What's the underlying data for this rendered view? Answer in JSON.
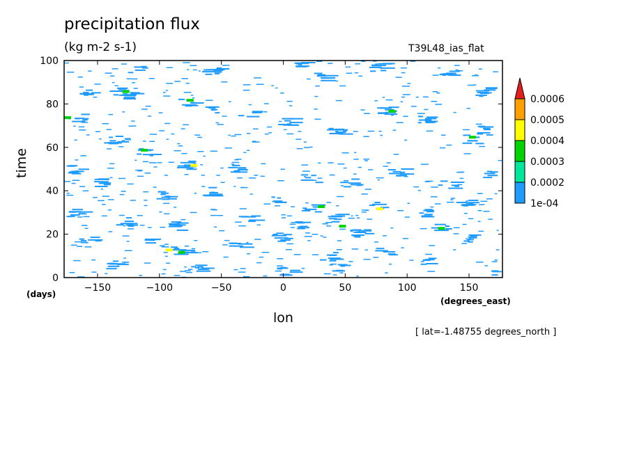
{
  "header": {
    "title": "precipitation flux",
    "units": "(kg m-2 s-1)",
    "run_label": "T39L48_ias_flat"
  },
  "footer": {
    "time_units": "(days)",
    "lon_units": "(degrees_east)",
    "slice_note": "[ lat=-1.48755 degrees_north ]"
  },
  "chart_data": {
    "type": "heatmap",
    "title": "precipitation flux",
    "subtitle": "(kg m-2 s-1)",
    "xlabel": "lon",
    "ylabel": "time",
    "xlim": [
      -177,
      177
    ],
    "ylim": [
      0,
      100
    ],
    "x_ticks": [
      -150,
      -100,
      -50,
      0,
      50,
      100,
      150
    ],
    "y_ticks": [
      0,
      20,
      40,
      60,
      80,
      100
    ],
    "x_tick_labels": [
      "-150",
      "-100",
      "-50",
      "0",
      "50",
      "100",
      "150"
    ],
    "y_tick_labels": [
      "0",
      "20",
      "40",
      "60",
      "80",
      "100"
    ],
    "colorbar": {
      "levels": [
        0.0001,
        0.0002,
        0.0003,
        0.0004,
        0.0005,
        0.0006
      ],
      "labels": [
        "1e-04",
        "0.0002",
        "0.0003",
        "0.0004",
        "0.0005",
        "0.0006"
      ],
      "colors": [
        "#1e9bff",
        "#00e69b",
        "#00d400",
        "#ffff00",
        "#ff9f00",
        "#e61e1e"
      ],
      "extend": "max"
    },
    "streaks": [
      {
        "x": -160,
        "y": 85,
        "len": 12
      },
      {
        "x": -135,
        "y": 86,
        "len": 14
      },
      {
        "x": -128,
        "y": 84,
        "len": 10
      },
      {
        "x": -80,
        "y": 81,
        "len": 12
      },
      {
        "x": -60,
        "y": 78,
        "len": 10
      },
      {
        "x": -30,
        "y": 76,
        "len": 14
      },
      {
        "x": 0,
        "y": 72,
        "len": 12
      },
      {
        "x": 40,
        "y": 68,
        "len": 10
      },
      {
        "x": 80,
        "y": 77,
        "len": 12
      },
      {
        "x": 110,
        "y": 73,
        "len": 14
      },
      {
        "x": 150,
        "y": 64,
        "len": 12
      },
      {
        "x": 160,
        "y": 68,
        "len": 10
      },
      {
        "x": -165,
        "y": 74,
        "len": 12
      },
      {
        "x": -140,
        "y": 64,
        "len": 12
      },
      {
        "x": -115,
        "y": 58,
        "len": 16
      },
      {
        "x": -80,
        "y": 52,
        "len": 12
      },
      {
        "x": -40,
        "y": 50,
        "len": 12
      },
      {
        "x": 20,
        "y": 46,
        "len": 12
      },
      {
        "x": 50,
        "y": 44,
        "len": 10
      },
      {
        "x": 90,
        "y": 49,
        "len": 12
      },
      {
        "x": 130,
        "y": 43,
        "len": 12
      },
      {
        "x": 165,
        "y": 48,
        "len": 10
      },
      {
        "x": -170,
        "y": 50,
        "len": 10
      },
      {
        "x": -150,
        "y": 44,
        "len": 12
      },
      {
        "x": -100,
        "y": 38,
        "len": 14
      },
      {
        "x": -60,
        "y": 40,
        "len": 10
      },
      {
        "x": -10,
        "y": 36,
        "len": 10
      },
      {
        "x": 20,
        "y": 32,
        "len": 12
      },
      {
        "x": 40,
        "y": 28,
        "len": 12
      },
      {
        "x": 75,
        "y": 33,
        "len": 12
      },
      {
        "x": 115,
        "y": 30,
        "len": 14
      },
      {
        "x": 145,
        "y": 34,
        "len": 12
      },
      {
        "x": -170,
        "y": 30,
        "len": 12
      },
      {
        "x": -130,
        "y": 26,
        "len": 12
      },
      {
        "x": -90,
        "y": 24,
        "len": 10
      },
      {
        "x": -30,
        "y": 28,
        "len": 14
      },
      {
        "x": 10,
        "y": 24,
        "len": 12
      },
      {
        "x": 60,
        "y": 21,
        "len": 12
      },
      {
        "x": 125,
        "y": 24,
        "len": 14
      },
      {
        "x": 150,
        "y": 18,
        "len": 10
      },
      {
        "x": -160,
        "y": 18,
        "len": 12
      },
      {
        "x": -110,
        "y": 16,
        "len": 12
      },
      {
        "x": -85,
        "y": 13,
        "len": 12
      },
      {
        "x": -40,
        "y": 15,
        "len": 12
      },
      {
        "x": -5,
        "y": 19,
        "len": 12
      },
      {
        "x": 35,
        "y": 10,
        "len": 14
      },
      {
        "x": 80,
        "y": 12,
        "len": 12
      },
      {
        "x": 115,
        "y": 8,
        "len": 10
      },
      {
        "x": -140,
        "y": 6,
        "len": 12
      },
      {
        "x": -70,
        "y": 5,
        "len": 12
      },
      {
        "x": 0,
        "y": 3,
        "len": 12
      },
      {
        "x": 45,
        "y": 5,
        "len": 14
      },
      {
        "x": 170,
        "y": 2,
        "len": 8
      },
      {
        "x": -120,
        "y": 96,
        "len": 12
      },
      {
        "x": -60,
        "y": 95,
        "len": 12
      },
      {
        "x": 10,
        "y": 99,
        "len": 10
      },
      {
        "x": 30,
        "y": 93,
        "len": 12
      },
      {
        "x": 75,
        "y": 97,
        "len": 12
      },
      {
        "x": 130,
        "y": 94,
        "len": 12
      },
      {
        "x": 160,
        "y": 86,
        "len": 10
      }
    ],
    "hotspots": [
      {
        "x": -130,
        "y": 86,
        "level": 0.0003
      },
      {
        "x": -78,
        "y": 82,
        "level": 0.0003
      },
      {
        "x": -115,
        "y": 59,
        "level": 0.0003
      },
      {
        "x": -75,
        "y": 52,
        "level": 0.0004
      },
      {
        "x": 28,
        "y": 33,
        "level": 0.0003
      },
      {
        "x": 45,
        "y": 24,
        "level": 0.0003
      },
      {
        "x": 75,
        "y": 32,
        "level": 0.0004
      },
      {
        "x": 125,
        "y": 23,
        "level": 0.0003
      },
      {
        "x": -95,
        "y": 13,
        "level": 0.0004
      },
      {
        "x": -85,
        "y": 12,
        "level": 0.0003
      },
      {
        "x": 85,
        "y": 77,
        "level": 0.0003
      },
      {
        "x": 150,
        "y": 65,
        "level": 0.0003
      },
      {
        "x": -180,
        "y": 74,
        "level": 0.0003
      }
    ]
  }
}
